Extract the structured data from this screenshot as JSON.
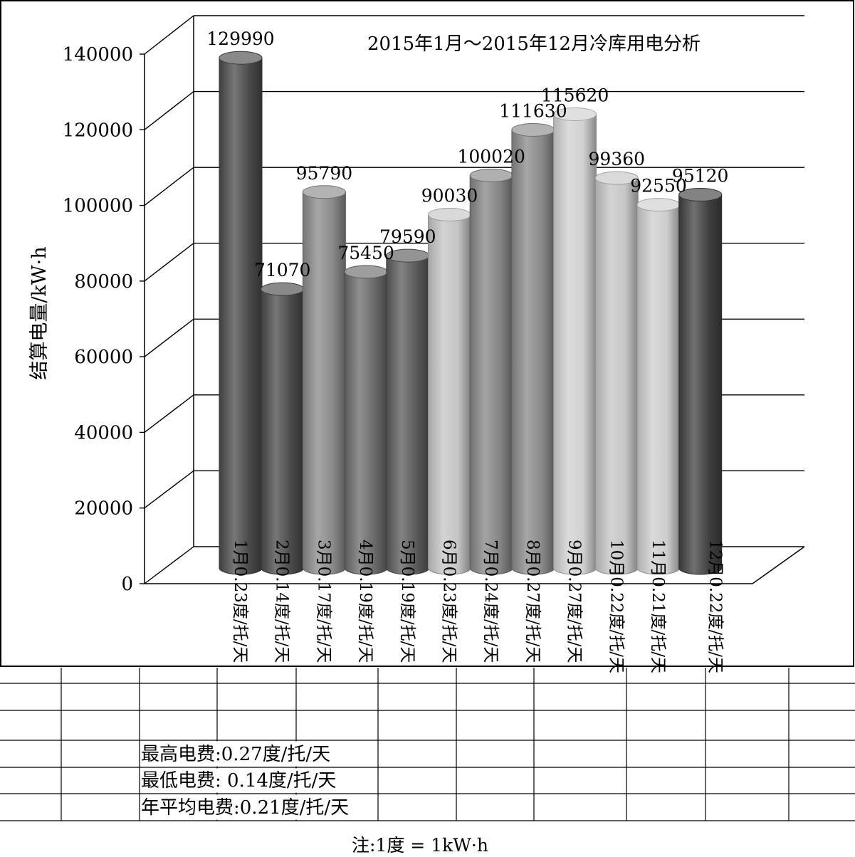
{
  "chart_data": {
    "type": "bar",
    "title": "2015年1月～2015年12月冷库用电分析",
    "ylabel": "结算电量/kW·h",
    "xlabel": "",
    "ylim": [
      0,
      140000
    ],
    "yticks": [
      "0",
      "20000",
      "40000",
      "60000",
      "80000",
      "100000",
      "120000",
      "140000"
    ],
    "grid": true,
    "bar_shape": "cylinder",
    "categories": [
      "1月0.23度/托/天",
      "2月0.14度/托/天",
      "3月0.17度/托/天",
      "4月0.19度/托/天",
      "5月0.19度/托/天",
      "6月0.23度/托/天",
      "7月0.24度/托/天",
      "8月0.27度/托/天",
      "9月0.27度/托/天",
      "10月0.22度/托/天",
      "11月0.21度/托/天",
      "12月0.22度/托/天"
    ],
    "values": [
      129990,
      71070,
      95790,
      75450,
      79590,
      90030,
      100020,
      111630,
      115620,
      99360,
      92550,
      95120
    ],
    "value_labels": [
      "129990",
      "71070",
      "95790",
      "75450",
      "79590",
      "90030",
      "100020",
      "111630",
      "115620",
      "99360",
      "92550",
      "95120"
    ],
    "bar_colors": [
      "#4a4a4a",
      "#4a4a4a",
      "#8a8a8a",
      "#6a6a6a",
      "#5a5a5a",
      "#c4c4c4",
      "#858585",
      "#8a8a8a",
      "#d0d0d0",
      "#c6c6c6",
      "#cdcdcd",
      "#404040"
    ]
  },
  "notes": {
    "max_fee": "最高电费:0.27度/托/天",
    "min_fee": "最低电费: 0.14度/托/天",
    "avg_fee": "年平均电费:0.21度/托/天"
  },
  "footnote": "注:1度 = 1kW·h"
}
